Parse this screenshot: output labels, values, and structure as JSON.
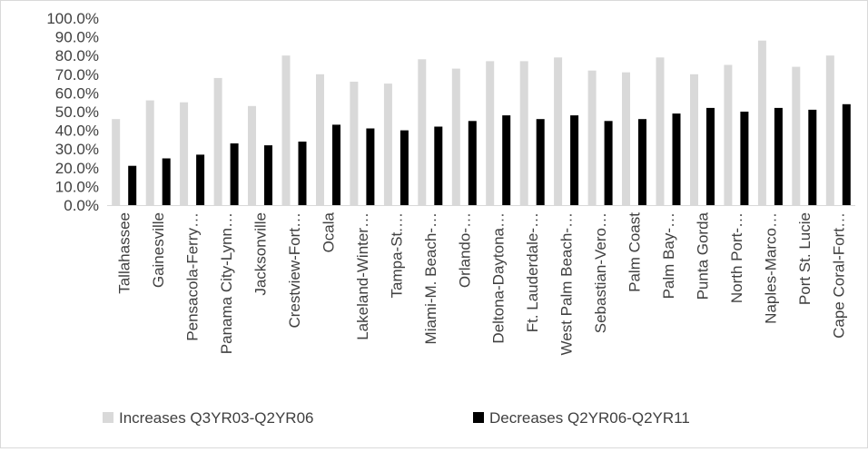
{
  "chart_data": {
    "type": "bar",
    "categories": [
      "Tallahassee",
      "Gainesville",
      "Pensacola-Ferry…",
      "Panama City-Lynn…",
      "Jacksonville",
      "Crestview-Fort…",
      "Ocala",
      "Lakeland-Winter…",
      "Tampa-St.…",
      "Miami-M. Beach-…",
      "Orlando-…",
      "Deltona-Daytona…",
      "Ft. Lauderdale-…",
      "West Palm Beach-…",
      "Sebastian-Vero…",
      "Palm Coast",
      "Palm Bay-…",
      "Punta Gorda",
      "North Port-…",
      "Naples-Marco…",
      "Port St. Lucie",
      "Cape Coral-Fort…"
    ],
    "series": [
      {
        "name": "Increases Q3YR03-Q2YR06",
        "color": "#d9d9d9",
        "values": [
          46,
          56,
          55,
          68,
          53,
          80,
          70,
          66,
          65,
          78,
          73,
          77,
          77,
          79,
          72,
          71,
          79,
          70,
          75,
          88,
          74,
          80
        ]
      },
      {
        "name": "Decreases Q2YR06-Q2YR11",
        "color": "#000000",
        "values": [
          21,
          25,
          27,
          33,
          32,
          34,
          43,
          41,
          40,
          42,
          45,
          48,
          46,
          48,
          45,
          46,
          49,
          52,
          50,
          52,
          51,
          54
        ]
      }
    ],
    "yticks": [
      "0.0%",
      "10.0%",
      "20.0%",
      "30.0%",
      "40.0%",
      "50.0%",
      "60.0%",
      "70.0%",
      "80.0%",
      "90.0%",
      "100.0%"
    ],
    "ylim": [
      0,
      100
    ],
    "grid": false,
    "legend": "bottom",
    "title": "",
    "xlabel": "",
    "ylabel": ""
  }
}
